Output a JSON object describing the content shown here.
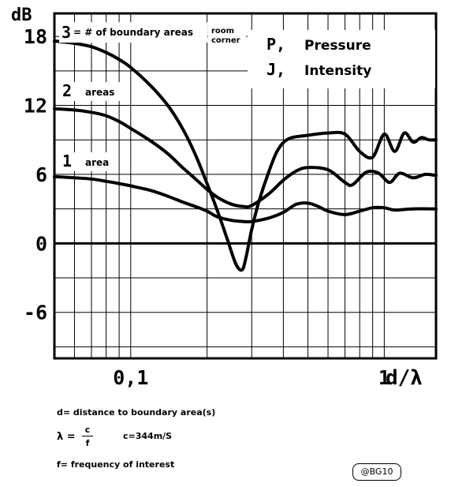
{
  "chart_data": {
    "type": "line",
    "ylabel": "dB",
    "xlabel": "d/λ",
    "xscale": "log",
    "xlim": [
      0.05,
      1.6
    ],
    "ylim": [
      -10,
      20
    ],
    "grid": true,
    "yticks": [
      {
        "value": 18,
        "label": "18"
      },
      {
        "value": 12,
        "label": "12"
      },
      {
        "value": 6,
        "label": "6"
      },
      {
        "value": 0,
        "label": "0"
      },
      {
        "value": -6,
        "label": "-6"
      }
    ],
    "xticks": [
      {
        "value": 0.1,
        "label": "0,1"
      },
      {
        "value": 1,
        "label": "1"
      }
    ],
    "series": [
      {
        "name": "3",
        "values": [
          [
            0.05,
            17.6
          ],
          [
            0.06,
            17.4
          ],
          [
            0.07,
            17.1
          ],
          [
            0.08,
            16.6
          ],
          [
            0.09,
            16.0
          ],
          [
            0.1,
            15.3
          ],
          [
            0.12,
            13.7
          ],
          [
            0.14,
            12.0
          ],
          [
            0.16,
            10.0
          ],
          [
            0.18,
            7.7
          ],
          [
            0.2,
            5.2
          ],
          [
            0.22,
            2.8
          ],
          [
            0.24,
            0.4
          ],
          [
            0.26,
            -1.8
          ],
          [
            0.275,
            -2.3
          ],
          [
            0.285,
            -1.2
          ],
          [
            0.3,
            1.2
          ],
          [
            0.32,
            3.6
          ],
          [
            0.35,
            6.2
          ],
          [
            0.38,
            8.1
          ],
          [
            0.42,
            9.1
          ],
          [
            0.5,
            9.4
          ],
          [
            0.6,
            9.6
          ],
          [
            0.7,
            9.5
          ],
          [
            0.8,
            8.0
          ],
          [
            0.9,
            7.5
          ],
          [
            1.0,
            9.5
          ],
          [
            1.1,
            8.0
          ],
          [
            1.2,
            9.6
          ],
          [
            1.3,
            8.8
          ],
          [
            1.4,
            9.2
          ],
          [
            1.5,
            9.0
          ],
          [
            1.6,
            9.0
          ]
        ]
      },
      {
        "name": "2",
        "values": [
          [
            0.05,
            11.7
          ],
          [
            0.06,
            11.6
          ],
          [
            0.07,
            11.4
          ],
          [
            0.08,
            11.1
          ],
          [
            0.09,
            10.6
          ],
          [
            0.1,
            10.0
          ],
          [
            0.12,
            8.9
          ],
          [
            0.14,
            7.8
          ],
          [
            0.16,
            6.6
          ],
          [
            0.18,
            5.6
          ],
          [
            0.2,
            4.7
          ],
          [
            0.22,
            4.0
          ],
          [
            0.25,
            3.4
          ],
          [
            0.28,
            3.2
          ],
          [
            0.3,
            3.3
          ],
          [
            0.35,
            4.3
          ],
          [
            0.4,
            5.5
          ],
          [
            0.45,
            6.3
          ],
          [
            0.5,
            6.6
          ],
          [
            0.6,
            6.4
          ],
          [
            0.7,
            5.3
          ],
          [
            0.75,
            5.1
          ],
          [
            0.85,
            6.2
          ],
          [
            0.95,
            6.1
          ],
          [
            1.05,
            5.3
          ],
          [
            1.15,
            6.1
          ],
          [
            1.3,
            5.7
          ],
          [
            1.45,
            6.0
          ],
          [
            1.6,
            5.9
          ]
        ]
      },
      {
        "name": "1",
        "values": [
          [
            0.05,
            5.8
          ],
          [
            0.06,
            5.7
          ],
          [
            0.07,
            5.6
          ],
          [
            0.08,
            5.4
          ],
          [
            0.09,
            5.2
          ],
          [
            0.1,
            5.0
          ],
          [
            0.12,
            4.6
          ],
          [
            0.14,
            4.1
          ],
          [
            0.16,
            3.6
          ],
          [
            0.18,
            3.2
          ],
          [
            0.2,
            2.8
          ],
          [
            0.22,
            2.3
          ],
          [
            0.25,
            2.0
          ],
          [
            0.28,
            1.9
          ],
          [
            0.3,
            1.9
          ],
          [
            0.35,
            2.2
          ],
          [
            0.4,
            2.7
          ],
          [
            0.45,
            3.4
          ],
          [
            0.5,
            3.5
          ],
          [
            0.55,
            3.2
          ],
          [
            0.6,
            2.8
          ],
          [
            0.7,
            2.5
          ],
          [
            0.8,
            2.8
          ],
          [
            0.9,
            3.1
          ],
          [
            1.0,
            3.1
          ],
          [
            1.1,
            2.9
          ],
          [
            1.3,
            3.0
          ],
          [
            1.6,
            3.0
          ]
        ]
      }
    ],
    "annotations": [
      {
        "text": "= # of boundary areas",
        "series": "3"
      },
      {
        "text": "areas",
        "series": "2"
      },
      {
        "text": "area",
        "series": "1"
      },
      {
        "text": "room",
        "series": "3"
      },
      {
        "text": "corner",
        "series": "3"
      }
    ],
    "legend": {
      "position": "top-right",
      "entries": [
        {
          "symbol": "P,",
          "text": "Pressure"
        },
        {
          "symbol": "J,",
          "text": "Intensity"
        }
      ]
    }
  },
  "notes": {
    "distance": "d= distance to boundary area(s)",
    "lambda_symbol": "λ =",
    "lambda_numerator": "c",
    "lambda_denominator": "f",
    "speed": "c=344m/S",
    "frequency": "f= frequency of interest"
  },
  "credit": "@BG10"
}
